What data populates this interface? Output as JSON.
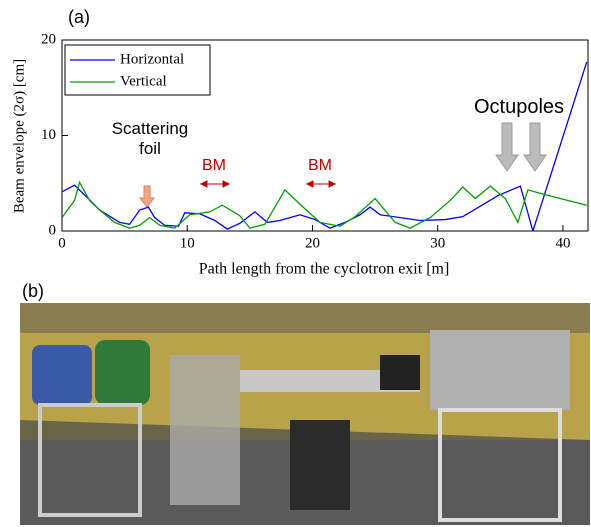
{
  "chart_data": {
    "type": "line",
    "panel_label": "(a)",
    "xlabel": "Path length from the cyclotron exit [m]",
    "ylabel": "Beam envelope (2σ) [cm]",
    "xlim": [
      0,
      42
    ],
    "ylim": [
      0,
      20
    ],
    "xticks": [
      0,
      10,
      20,
      30,
      40
    ],
    "yticks": [
      0,
      10,
      20
    ],
    "legend": "upper left",
    "series": [
      {
        "name": "Horizontal",
        "color": "#0000ff",
        "x": [
          0,
          1.0,
          2.1,
          3,
          4.6,
          5.4,
          6.2,
          6.9,
          7.4,
          8.2,
          9.3,
          9.8,
          11,
          12.2,
          13.2,
          14.2,
          15.4,
          16.4,
          17.4,
          19,
          20.2,
          21.4,
          22.6,
          23.8,
          24.6,
          25.4,
          27,
          28.6,
          30.6,
          32,
          33.4,
          34.8,
          36.6,
          37.6,
          41.9
        ],
        "values": [
          4.1,
          4.8,
          3.4,
          2.2,
          0.9,
          0.7,
          2.2,
          2.5,
          1.4,
          0.6,
          0.5,
          1.9,
          1.8,
          1.1,
          0.2,
          0.8,
          2.0,
          0.9,
          1.1,
          1.7,
          1.2,
          0.3,
          0.9,
          1.7,
          2.5,
          1.7,
          1.4,
          1.1,
          1.2,
          1.5,
          2.6,
          3.7,
          4.7,
          0,
          17.7
        ]
      },
      {
        "name": "Vertical",
        "color": "#00a000",
        "x": [
          0,
          1,
          1.4,
          2.2,
          3,
          4.2,
          5.4,
          6.2,
          7,
          7.8,
          9,
          10.2,
          11.8,
          12.8,
          14.2,
          15,
          16.2,
          17.8,
          19,
          20.6,
          22.2,
          23.4,
          25,
          26.6,
          27.8,
          29.4,
          31,
          32,
          33,
          34.2,
          35.4,
          36.4,
          37.2,
          38.6,
          41.9
        ],
        "values": [
          1.4,
          3.2,
          5.1,
          3.2,
          2.2,
          0.9,
          0.3,
          0.6,
          1.4,
          0.6,
          0.3,
          1.7,
          2.0,
          2.7,
          1.6,
          0.3,
          0.7,
          4.3,
          2.8,
          0.9,
          0.5,
          1.5,
          3.4,
          0.9,
          0.3,
          1.4,
          3.2,
          4.6,
          3.4,
          4.7,
          3.4,
          0.9,
          4.3,
          3.8,
          2.7
        ]
      }
    ],
    "annotations": [
      "Scattering\nfoil",
      "BM",
      "BM",
      "Octupoles"
    ]
  },
  "photo": {
    "panel_label": "(b)"
  }
}
